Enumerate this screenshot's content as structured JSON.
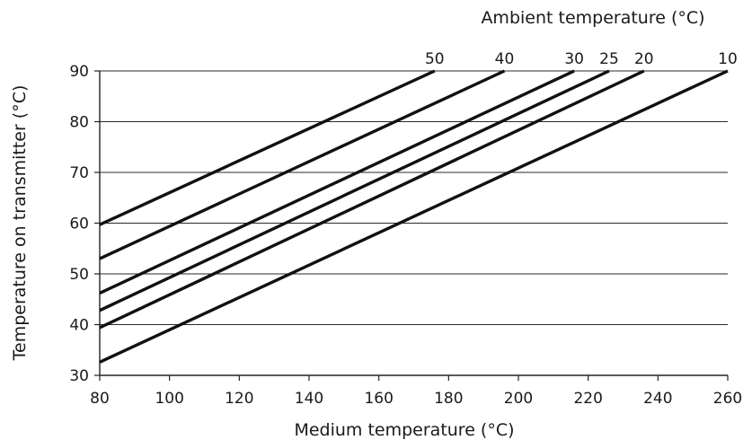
{
  "chart_data": {
    "type": "line",
    "xlabel": "Medium temperature (°C)",
    "ylabel": "Temperature on transmitter (°C)",
    "legend_title": "Ambient temperature (°C)",
    "xlim": [
      80,
      260
    ],
    "ylim": [
      30,
      90
    ],
    "x_ticks": [
      "80",
      "100",
      "120",
      "140",
      "160",
      "180",
      "200",
      "220",
      "240",
      "260"
    ],
    "y_ticks": [
      "30",
      "40",
      "50",
      "60",
      "70",
      "80",
      "90"
    ],
    "grid": "horizontal",
    "series": [
      {
        "name": "50",
        "x": [
          80,
          176
        ],
        "y": [
          59.7,
          90
        ]
      },
      {
        "name": "40",
        "x": [
          80,
          196
        ],
        "y": [
          53,
          90
        ]
      },
      {
        "name": "30",
        "x": [
          80,
          216
        ],
        "y": [
          46.2,
          90
        ]
      },
      {
        "name": "25",
        "x": [
          80,
          226
        ],
        "y": [
          42.8,
          90
        ]
      },
      {
        "name": "20",
        "x": [
          80,
          236
        ],
        "y": [
          39.4,
          90
        ]
      },
      {
        "name": "10",
        "x": [
          80,
          260
        ],
        "y": [
          32.6,
          90
        ]
      }
    ]
  }
}
